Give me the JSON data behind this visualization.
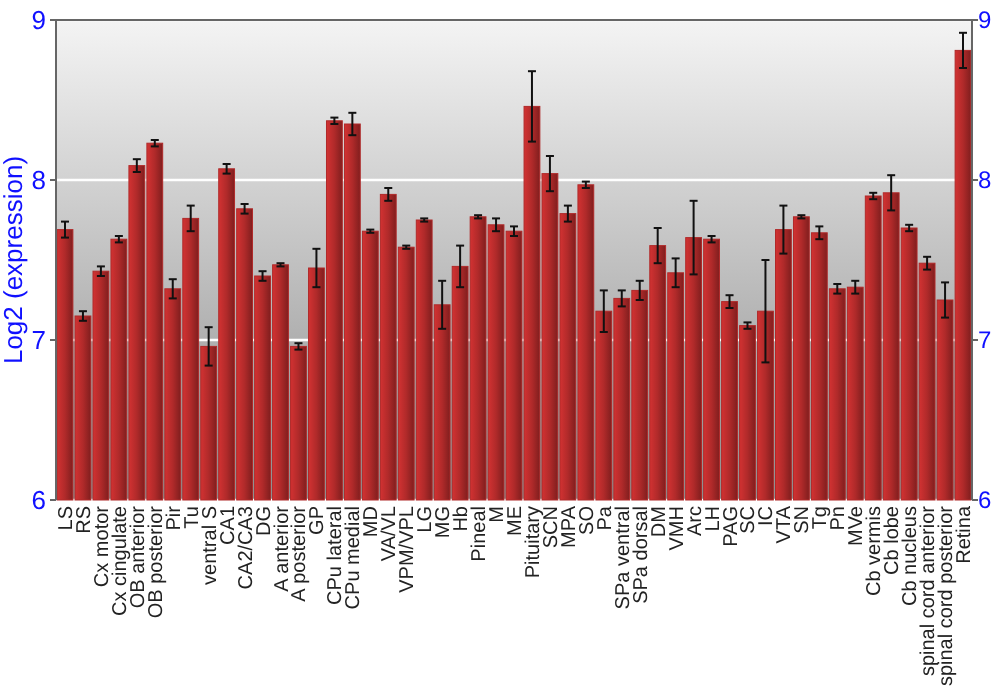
{
  "chart_data": {
    "type": "bar",
    "ylabel": "Log2 (expression)",
    "categories": [
      "LS",
      "RS",
      "Cx motor",
      "Cx cingulate",
      "OB anterior",
      "OB posterior",
      "Pir",
      "Tu",
      "ventral S",
      "CA1",
      "CA2/CA3",
      "DG",
      "A anterior",
      "A posterior",
      "GP",
      "CPu lateral",
      "CPu medial",
      "MD",
      "VA/VL",
      "VPM/VPL",
      "LG",
      "MG",
      "Hb",
      "Pineal",
      "M",
      "ME",
      "Pituitary",
      "SCN",
      "MPA",
      "SO",
      "Pa",
      "SPa ventral",
      "SPa dorsal",
      "DM",
      "VMH",
      "Arc",
      "LH",
      "PAG",
      "SC",
      "IC",
      "VTA",
      "SN",
      "Tg",
      "Pn",
      "MVe",
      "Cb vermis",
      "Cb lobe",
      "Cb nucleus",
      "spinal cord anterior",
      "spinal cord posterior",
      "Retina"
    ],
    "values": [
      7.69,
      7.15,
      7.43,
      7.63,
      8.09,
      8.23,
      7.32,
      7.76,
      6.96,
      8.07,
      7.82,
      7.4,
      7.47,
      6.96,
      7.45,
      8.37,
      8.35,
      7.68,
      7.91,
      7.58,
      7.75,
      7.22,
      7.46,
      7.77,
      7.72,
      7.68,
      8.46,
      8.04,
      7.79,
      7.97,
      7.18,
      7.26,
      7.31,
      7.59,
      7.42,
      7.64,
      7.63,
      7.24,
      7.09,
      7.18,
      7.69,
      7.77,
      7.67,
      7.32,
      7.33,
      7.9,
      7.92,
      7.7,
      7.48,
      7.25,
      8.81
    ],
    "errors": [
      0.05,
      0.03,
      0.03,
      0.02,
      0.04,
      0.02,
      0.06,
      0.08,
      0.12,
      0.03,
      0.03,
      0.03,
      0.01,
      0.02,
      0.12,
      0.02,
      0.07,
      0.01,
      0.04,
      0.01,
      0.01,
      0.15,
      0.13,
      0.01,
      0.04,
      0.03,
      0.22,
      0.11,
      0.05,
      0.02,
      0.13,
      0.05,
      0.06,
      0.11,
      0.09,
      0.23,
      0.02,
      0.04,
      0.02,
      0.32,
      0.15,
      0.01,
      0.04,
      0.03,
      0.04,
      0.02,
      0.11,
      0.02,
      0.04,
      0.11,
      0.11
    ],
    "color": "#b02a2a",
    "ylim": [
      6,
      9
    ],
    "yticks": [
      6,
      7,
      8,
      9
    ],
    "y2lim": [
      6,
      9
    ],
    "y2ticks": [
      6,
      7,
      8,
      9
    ],
    "grid": "y"
  }
}
